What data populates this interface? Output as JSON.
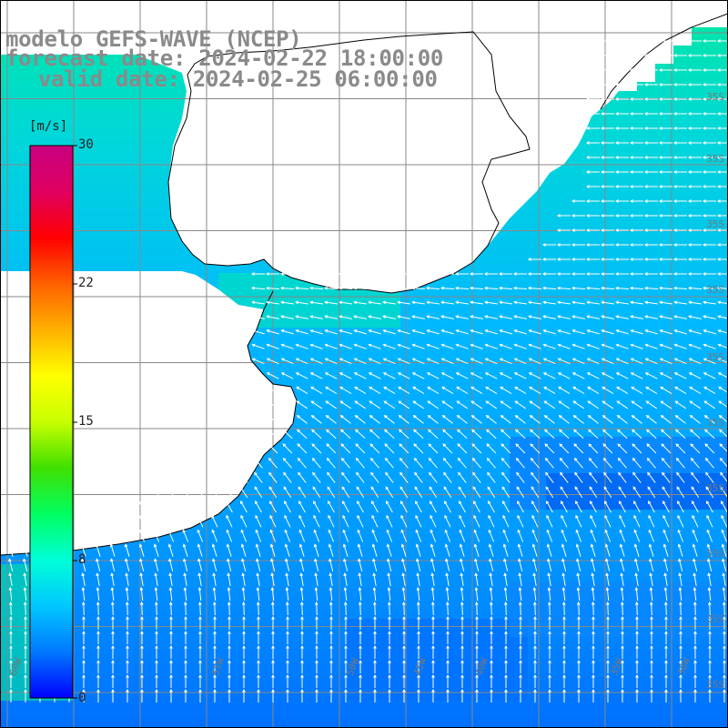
{
  "title": {
    "model": "modelo GEFS-WAVE (NCEP)",
    "forecast": "forecast date: 2024-02-22 18:00:00",
    "valid": "valid date: 2024-02-25 06:00:00"
  },
  "colorbar": {
    "unit": "[m/s]",
    "ticks": [
      "30",
      "22",
      "15",
      "8",
      "0"
    ],
    "min": 0,
    "max": 30,
    "colors": [
      "#0000ff",
      "#0078ff",
      "#00c8ff",
      "#00ffd8",
      "#00ff60",
      "#40e000",
      "#c8ff00",
      "#ffff00",
      "#ffb000",
      "#ff6000",
      "#ff0000",
      "#e00060",
      "#c80080"
    ]
  },
  "map": {
    "land_color": "#ffffff",
    "coast_color": "#000000",
    "grid_color": "#888888",
    "arrow_color": "#ffffff",
    "lat_labels": [
      "35S",
      "35S",
      "35S",
      "35S",
      "35S",
      "35S",
      "35S",
      "35S",
      "35S",
      "35S"
    ],
    "lon_labels": [
      "60W",
      "55W",
      "50W",
      "45W",
      "40W",
      "35W",
      "30W"
    ]
  }
}
